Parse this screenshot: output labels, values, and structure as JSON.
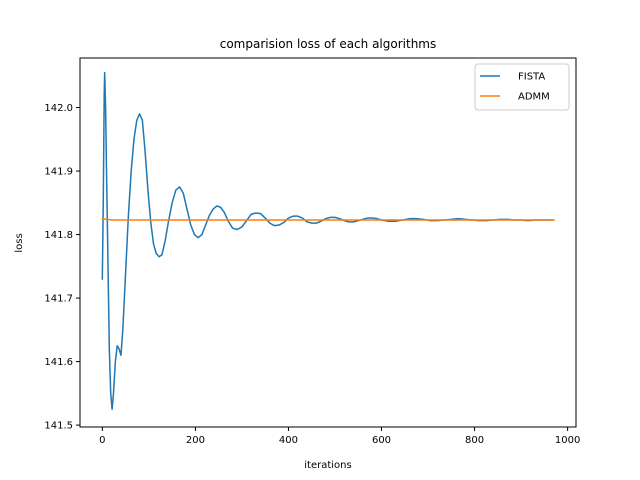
{
  "chart_data": {
    "type": "line",
    "title": "comparision loss of each algorithms",
    "xlabel": "iterations",
    "ylabel": "loss",
    "xlim": [
      -48,
      1018
    ],
    "ylim": [
      141.497,
      142.078
    ],
    "xticks": [
      0,
      200,
      400,
      600,
      800,
      1000
    ],
    "yticks": [
      141.5,
      141.6,
      141.7,
      141.8,
      141.9,
      142.0
    ],
    "ytick_labels": [
      "141.5",
      "141.6",
      "141.7",
      "141.8",
      "141.9",
      "142.0"
    ],
    "grid": false,
    "legend_position": "top-right",
    "series": [
      {
        "name": "FISTA",
        "color": "#1f77b4",
        "points": [
          [
            0,
            141.73
          ],
          [
            2,
            141.85
          ],
          [
            4,
            142.02
          ],
          [
            5,
            142.055
          ],
          [
            7,
            142.0
          ],
          [
            9,
            141.9
          ],
          [
            12,
            141.76
          ],
          [
            15,
            141.62
          ],
          [
            18,
            141.55
          ],
          [
            21,
            141.525
          ],
          [
            24,
            141.55
          ],
          [
            28,
            141.6
          ],
          [
            32,
            141.625
          ],
          [
            36,
            141.62
          ],
          [
            40,
            141.61
          ],
          [
            44,
            141.65
          ],
          [
            50,
            141.74
          ],
          [
            56,
            141.83
          ],
          [
            62,
            141.9
          ],
          [
            68,
            141.95
          ],
          [
            74,
            141.98
          ],
          [
            80,
            141.99
          ],
          [
            86,
            141.98
          ],
          [
            92,
            141.93
          ],
          [
            98,
            141.87
          ],
          [
            104,
            141.82
          ],
          [
            110,
            141.785
          ],
          [
            116,
            141.77
          ],
          [
            122,
            141.765
          ],
          [
            128,
            141.768
          ],
          [
            135,
            141.79
          ],
          [
            142,
            141.82
          ],
          [
            150,
            141.85
          ],
          [
            158,
            141.87
          ],
          [
            166,
            141.875
          ],
          [
            174,
            141.865
          ],
          [
            182,
            141.84
          ],
          [
            190,
            141.815
          ],
          [
            198,
            141.8
          ],
          [
            206,
            141.795
          ],
          [
            214,
            141.8
          ],
          [
            222,
            141.815
          ],
          [
            230,
            141.83
          ],
          [
            238,
            141.84
          ],
          [
            246,
            141.845
          ],
          [
            254,
            141.843
          ],
          [
            262,
            141.835
          ],
          [
            270,
            141.822
          ],
          [
            280,
            141.81
          ],
          [
            290,
            141.808
          ],
          [
            300,
            141.812
          ],
          [
            310,
            141.822
          ],
          [
            320,
            141.832
          ],
          [
            330,
            141.834
          ],
          [
            340,
            141.833
          ],
          [
            350,
            141.826
          ],
          [
            360,
            141.818
          ],
          [
            370,
            141.814
          ],
          [
            380,
            141.815
          ],
          [
            390,
            141.819
          ],
          [
            400,
            141.826
          ],
          [
            410,
            141.829
          ],
          [
            420,
            141.829
          ],
          [
            430,
            141.826
          ],
          [
            440,
            141.82
          ],
          [
            450,
            141.818
          ],
          [
            460,
            141.818
          ],
          [
            470,
            141.821
          ],
          [
            480,
            141.825
          ],
          [
            490,
            141.827
          ],
          [
            500,
            141.827
          ],
          [
            510,
            141.825
          ],
          [
            520,
            141.822
          ],
          [
            530,
            141.82
          ],
          [
            540,
            141.82
          ],
          [
            550,
            141.822
          ],
          [
            560,
            141.824
          ],
          [
            570,
            141.826
          ],
          [
            580,
            141.826
          ],
          [
            590,
            141.825
          ],
          [
            600,
            141.823
          ],
          [
            615,
            141.821
          ],
          [
            630,
            141.821
          ],
          [
            645,
            141.823
          ],
          [
            660,
            141.825
          ],
          [
            675,
            141.825
          ],
          [
            690,
            141.824
          ],
          [
            705,
            141.822
          ],
          [
            720,
            141.822
          ],
          [
            735,
            141.823
          ],
          [
            750,
            141.824
          ],
          [
            765,
            141.825
          ],
          [
            780,
            141.824
          ],
          [
            795,
            141.823
          ],
          [
            810,
            141.822
          ],
          [
            825,
            141.822
          ],
          [
            840,
            141.823
          ],
          [
            855,
            141.824
          ],
          [
            870,
            141.824
          ],
          [
            885,
            141.823
          ],
          [
            900,
            141.823
          ],
          [
            915,
            141.822
          ],
          [
            930,
            141.823
          ],
          [
            945,
            141.823
          ],
          [
            960,
            141.823
          ],
          [
            970,
            141.823
          ]
        ]
      },
      {
        "name": "ADMM",
        "color": "#ff7f0e",
        "points": [
          [
            0,
            141.825
          ],
          [
            10,
            141.824
          ],
          [
            20,
            141.823
          ],
          [
            40,
            141.823
          ],
          [
            100,
            141.823
          ],
          [
            200,
            141.823
          ],
          [
            300,
            141.823
          ],
          [
            400,
            141.823
          ],
          [
            500,
            141.823
          ],
          [
            600,
            141.823
          ],
          [
            700,
            141.823
          ],
          [
            800,
            141.823
          ],
          [
            900,
            141.823
          ],
          [
            970,
            141.823
          ]
        ]
      }
    ]
  }
}
